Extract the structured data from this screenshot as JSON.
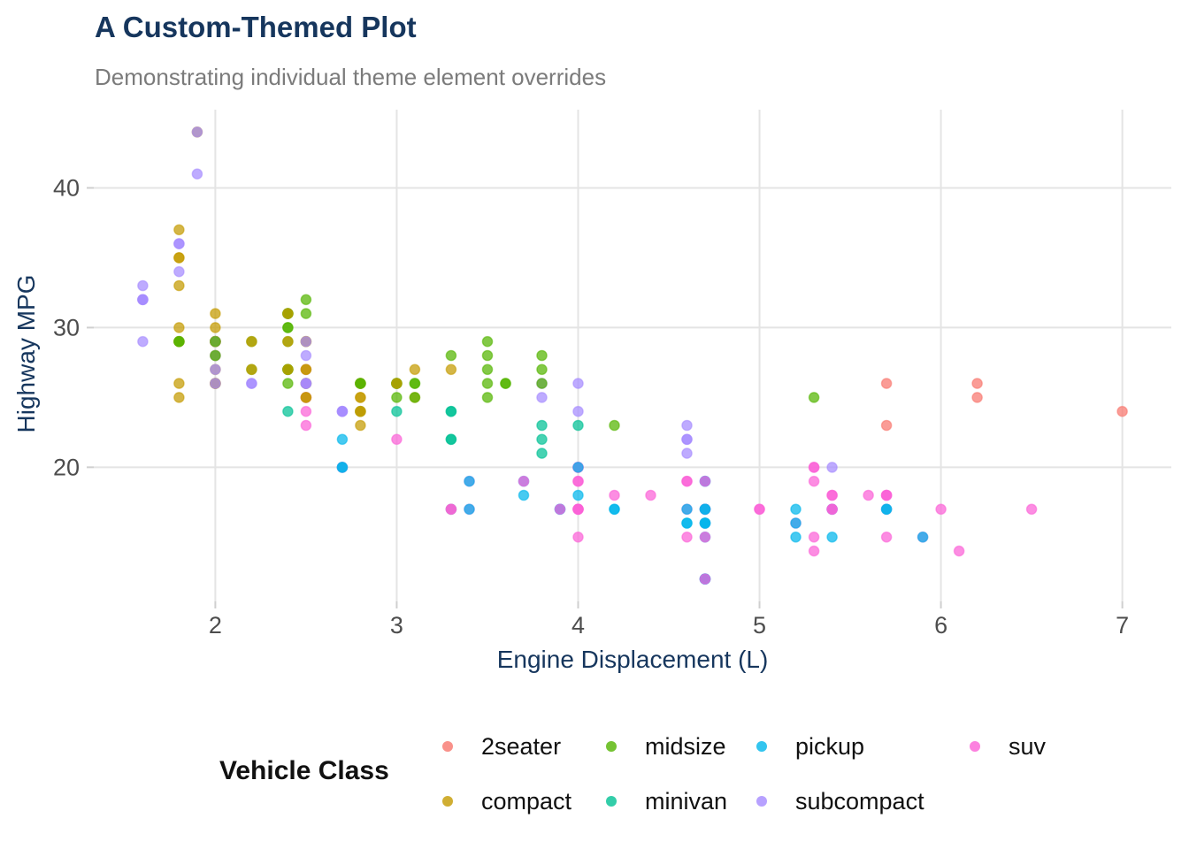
{
  "header": {
    "title": "A Custom-Themed Plot",
    "subtitle": "Demonstrating individual theme element overrides"
  },
  "legend": {
    "title": "Vehicle Class"
  },
  "colors": {
    "background": "#ffffff",
    "title": "#16365d",
    "subtitle": "#7b7b7b",
    "axis_title": "#16365d",
    "tick_label": "#4d4d4d",
    "gridline": "#e4e4e4",
    "tick_mark": "#cfcfcf",
    "legend_text": "#111111"
  },
  "chart_data": {
    "type": "scatter",
    "title": "A Custom-Themed Plot",
    "subtitle": "Demonstrating individual theme element overrides",
    "xlabel": "Engine Displacement (L)",
    "ylabel": "Highway MPG",
    "legend_title": "Vehicle Class",
    "legend_position": "bottom",
    "grid": "major-only",
    "x_ticks": [
      2,
      3,
      4,
      5,
      6,
      7
    ],
    "y_ticks": [
      20,
      30,
      40
    ],
    "xlim": [
      1.33,
      7.27
    ],
    "ylim": [
      10.4,
      45.6
    ],
    "point_alpha": 0.72,
    "classes": [
      "2seater",
      "compact",
      "midsize",
      "minivan",
      "pickup",
      "subcompact",
      "suv"
    ],
    "palette": [
      "#F8766D",
      "#C49A00",
      "#53B400",
      "#00C094",
      "#00B6EB",
      "#A58AFF",
      "#FB61D7"
    ],
    "points": [
      [
        1.8,
        29,
        1
      ],
      [
        1.8,
        29,
        1
      ],
      [
        2.0,
        31,
        1
      ],
      [
        2.0,
        30,
        1
      ],
      [
        2.8,
        26,
        1
      ],
      [
        2.8,
        26,
        1
      ],
      [
        3.1,
        27,
        1
      ],
      [
        1.8,
        26,
        1
      ],
      [
        1.8,
        25,
        1
      ],
      [
        2.0,
        28,
        1
      ],
      [
        2.0,
        27,
        1
      ],
      [
        2.8,
        25,
        1
      ],
      [
        2.8,
        25,
        1
      ],
      [
        3.1,
        25,
        1
      ],
      [
        2.8,
        24,
        2
      ],
      [
        3.1,
        25,
        2
      ],
      [
        4.2,
        23,
        2
      ],
      [
        5.3,
        20,
        6
      ],
      [
        5.3,
        15,
        6
      ],
      [
        5.3,
        20,
        6
      ],
      [
        5.7,
        17,
        6
      ],
      [
        6.0,
        17,
        6
      ],
      [
        5.7,
        26,
        0
      ],
      [
        5.7,
        23,
        0
      ],
      [
        6.2,
        26,
        0
      ],
      [
        6.2,
        25,
        0
      ],
      [
        7.0,
        24,
        0
      ],
      [
        5.3,
        19,
        6
      ],
      [
        5.3,
        14,
        6
      ],
      [
        5.7,
        15,
        6
      ],
      [
        6.5,
        17,
        6
      ],
      [
        2.4,
        27,
        2
      ],
      [
        2.4,
        30,
        2
      ],
      [
        3.1,
        26,
        2
      ],
      [
        3.5,
        29,
        2
      ],
      [
        3.6,
        26,
        2
      ],
      [
        2.4,
        24,
        3
      ],
      [
        3.0,
        24,
        3
      ],
      [
        3.3,
        22,
        3
      ],
      [
        3.3,
        22,
        3
      ],
      [
        3.3,
        24,
        3
      ],
      [
        3.3,
        24,
        3
      ],
      [
        3.3,
        17,
        3
      ],
      [
        3.8,
        22,
        3
      ],
      [
        3.8,
        21,
        3
      ],
      [
        3.8,
        23,
        3
      ],
      [
        4.0,
        23,
        3
      ],
      [
        3.7,
        19,
        4
      ],
      [
        3.7,
        18,
        4
      ],
      [
        3.9,
        17,
        4
      ],
      [
        3.9,
        17,
        4
      ],
      [
        4.7,
        19,
        4
      ],
      [
        4.7,
        19,
        4
      ],
      [
        4.7,
        12,
        4
      ],
      [
        5.2,
        17,
        4
      ],
      [
        5.2,
        15,
        4
      ],
      [
        3.9,
        17,
        6
      ],
      [
        4.7,
        17,
        6
      ],
      [
        4.7,
        12,
        6
      ],
      [
        4.7,
        16,
        6
      ],
      [
        5.2,
        16,
        6
      ],
      [
        5.7,
        18,
        6
      ],
      [
        5.9,
        15,
        6
      ],
      [
        4.7,
        16,
        4
      ],
      [
        4.7,
        12,
        4
      ],
      [
        4.7,
        17,
        4
      ],
      [
        4.7,
        15,
        4
      ],
      [
        4.7,
        12,
        4
      ],
      [
        4.7,
        17,
        4
      ],
      [
        4.7,
        16,
        4
      ],
      [
        5.2,
        16,
        4
      ],
      [
        5.7,
        17,
        4
      ],
      [
        5.9,
        15,
        4
      ],
      [
        4.6,
        17,
        6
      ],
      [
        5.4,
        17,
        6
      ],
      [
        5.4,
        18,
        6
      ],
      [
        4.0,
        17,
        6
      ],
      [
        4.0,
        17,
        6
      ],
      [
        4.0,
        17,
        6
      ],
      [
        4.0,
        19,
        6
      ],
      [
        4.6,
        19,
        6
      ],
      [
        5.0,
        17,
        6
      ],
      [
        4.2,
        17,
        4
      ],
      [
        4.2,
        17,
        4
      ],
      [
        4.6,
        16,
        4
      ],
      [
        4.6,
        16,
        4
      ],
      [
        4.6,
        17,
        4
      ],
      [
        5.4,
        15,
        4
      ],
      [
        5.4,
        17,
        4
      ],
      [
        3.8,
        26,
        5
      ],
      [
        3.8,
        25,
        5
      ],
      [
        4.0,
        26,
        5
      ],
      [
        4.0,
        24,
        5
      ],
      [
        4.6,
        23,
        5
      ],
      [
        4.6,
        22,
        5
      ],
      [
        4.6,
        22,
        5
      ],
      [
        4.6,
        21,
        5
      ],
      [
        5.4,
        20,
        5
      ],
      [
        1.6,
        33,
        5
      ],
      [
        1.6,
        32,
        5
      ],
      [
        1.6,
        32,
        5
      ],
      [
        1.6,
        29,
        5
      ],
      [
        1.6,
        32,
        5
      ],
      [
        1.8,
        34,
        5
      ],
      [
        1.8,
        36,
        5
      ],
      [
        1.8,
        36,
        5
      ],
      [
        2.0,
        29,
        5
      ],
      [
        2.4,
        26,
        2
      ],
      [
        2.4,
        27,
        2
      ],
      [
        2.4,
        30,
        2
      ],
      [
        2.4,
        31,
        2
      ],
      [
        2.5,
        26,
        2
      ],
      [
        2.5,
        26,
        2
      ],
      [
        3.3,
        28,
        2
      ],
      [
        2.0,
        26,
        5
      ],
      [
        2.0,
        29,
        5
      ],
      [
        2.0,
        28,
        5
      ],
      [
        2.0,
        27,
        5
      ],
      [
        2.7,
        24,
        5
      ],
      [
        2.7,
        24,
        5
      ],
      [
        2.7,
        24,
        5
      ],
      [
        3.0,
        22,
        6
      ],
      [
        3.7,
        19,
        6
      ],
      [
        4.0,
        20,
        6
      ],
      [
        4.7,
        17,
        6
      ],
      [
        4.7,
        12,
        6
      ],
      [
        4.7,
        19,
        6
      ],
      [
        5.7,
        18,
        6
      ],
      [
        6.1,
        14,
        6
      ],
      [
        4.0,
        15,
        6
      ],
      [
        4.2,
        18,
        6
      ],
      [
        4.4,
        18,
        6
      ],
      [
        4.6,
        15,
        6
      ],
      [
        5.4,
        17,
        6
      ],
      [
        5.4,
        17,
        6
      ],
      [
        5.4,
        18,
        6
      ],
      [
        4.0,
        17,
        6
      ],
      [
        4.0,
        19,
        6
      ],
      [
        4.6,
        19,
        6
      ],
      [
        5.0,
        17,
        6
      ],
      [
        2.4,
        29,
        2
      ],
      [
        2.4,
        27,
        2
      ],
      [
        2.5,
        31,
        2
      ],
      [
        2.5,
        32,
        2
      ],
      [
        3.5,
        27,
        2
      ],
      [
        3.5,
        26,
        2
      ],
      [
        3.0,
        26,
        2
      ],
      [
        3.0,
        25,
        2
      ],
      [
        3.5,
        25,
        2
      ],
      [
        3.3,
        17,
        6
      ],
      [
        3.3,
        17,
        6
      ],
      [
        4.0,
        20,
        6
      ],
      [
        5.6,
        18,
        6
      ],
      [
        3.1,
        26,
        2
      ],
      [
        3.8,
        28,
        2
      ],
      [
        3.8,
        27,
        2
      ],
      [
        3.8,
        26,
        2
      ],
      [
        5.3,
        25,
        2
      ],
      [
        2.5,
        25,
        6
      ],
      [
        2.5,
        24,
        6
      ],
      [
        2.5,
        27,
        6
      ],
      [
        2.5,
        25,
        6
      ],
      [
        2.5,
        26,
        6
      ],
      [
        2.5,
        23,
        6
      ],
      [
        2.2,
        26,
        5
      ],
      [
        2.2,
        26,
        5
      ],
      [
        2.5,
        26,
        5
      ],
      [
        2.5,
        26,
        5
      ],
      [
        2.5,
        25,
        1
      ],
      [
        2.5,
        27,
        1
      ],
      [
        2.5,
        25,
        1
      ],
      [
        2.5,
        27,
        1
      ],
      [
        2.7,
        20,
        6
      ],
      [
        2.7,
        20,
        6
      ],
      [
        3.4,
        19,
        6
      ],
      [
        3.4,
        17,
        6
      ],
      [
        4.0,
        20,
        6
      ],
      [
        4.7,
        17,
        6
      ],
      [
        2.2,
        29,
        2
      ],
      [
        2.2,
        27,
        2
      ],
      [
        2.4,
        31,
        2
      ],
      [
        2.4,
        31,
        2
      ],
      [
        3.0,
        26,
        2
      ],
      [
        3.0,
        26,
        2
      ],
      [
        3.5,
        28,
        2
      ],
      [
        2.2,
        29,
        1
      ],
      [
        2.2,
        27,
        1
      ],
      [
        2.4,
        31,
        1
      ],
      [
        2.4,
        29,
        1
      ],
      [
        2.4,
        27,
        1
      ],
      [
        3.0,
        26,
        1
      ],
      [
        3.3,
        27,
        1
      ],
      [
        1.8,
        30,
        1
      ],
      [
        1.8,
        33,
        1
      ],
      [
        1.8,
        35,
        1
      ],
      [
        1.8,
        37,
        1
      ],
      [
        1.8,
        35,
        1
      ],
      [
        4.7,
        15,
        6
      ],
      [
        5.7,
        18,
        6
      ],
      [
        2.7,
        20,
        4
      ],
      [
        2.7,
        20,
        4
      ],
      [
        2.7,
        22,
        4
      ],
      [
        3.4,
        19,
        4
      ],
      [
        3.4,
        17,
        4
      ],
      [
        4.0,
        20,
        4
      ],
      [
        4.0,
        18,
        4
      ],
      [
        4.7,
        17,
        4
      ],
      [
        4.7,
        17,
        4
      ],
      [
        4.7,
        16,
        4
      ],
      [
        5.7,
        17,
        4
      ],
      [
        2.0,
        29,
        1
      ],
      [
        2.0,
        29,
        1
      ],
      [
        2.0,
        26,
        1
      ],
      [
        2.0,
        29,
        1
      ],
      [
        2.8,
        24,
        1
      ],
      [
        1.9,
        44,
        1
      ],
      [
        2.0,
        29,
        1
      ],
      [
        2.0,
        29,
        1
      ],
      [
        2.0,
        26,
        1
      ],
      [
        2.0,
        29,
        1
      ],
      [
        2.5,
        29,
        1
      ],
      [
        2.5,
        29,
        1
      ],
      [
        2.8,
        23,
        1
      ],
      [
        2.8,
        24,
        1
      ],
      [
        1.9,
        44,
        5
      ],
      [
        1.9,
        41,
        5
      ],
      [
        2.0,
        29,
        5
      ],
      [
        2.0,
        26,
        5
      ],
      [
        2.5,
        28,
        5
      ],
      [
        2.5,
        29,
        5
      ],
      [
        1.8,
        29,
        2
      ],
      [
        1.8,
        29,
        2
      ],
      [
        2.0,
        28,
        2
      ],
      [
        2.0,
        29,
        2
      ],
      [
        2.8,
        26,
        2
      ],
      [
        2.8,
        26,
        2
      ],
      [
        3.6,
        26,
        2
      ]
    ]
  }
}
